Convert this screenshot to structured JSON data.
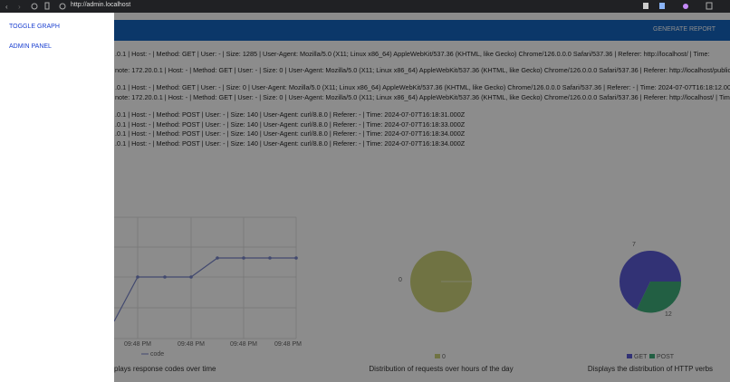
{
  "browser": {
    "url": "http://admin.localhost"
  },
  "header": {
    "button": "GENERATE REPORT"
  },
  "sidebar": {
    "links": [
      "TOGGLE GRAPH",
      "ADMIN PANEL"
    ]
  },
  "logs": [
    ".0.1 | Host: - | Method: GET | User: - | Size: 1285 | User-Agent: Mozilla/5.0 (X11; Linux x86_64) AppleWebKit/537.36 (KHTML, like Gecko) Chrome/126.0.0.0 Safari/537.36 | Referer: http://localhost/ | Time:",
    "note: 172.20.0.1 | Host: - | Method: GET | User: - | Size: 0 | User-Agent: Mozilla/5.0 (X11; Linux x86_64) AppleWebKit/537.36 (KHTML, like Gecko) Chrome/126.0.0.0 Safari/537.36 | Referer: http://localhost/public/ |",
    ".0.1 | Host: - | Method: GET | User: - | Size: 0 | User-Agent: Mozilla/5.0 (X11; Linux x86_64) AppleWebKit/537.36 (KHTML, like Gecko) Chrome/126.0.0.0 Safari/537.36 | Referer: - | Time: 2024-07-07T16:18:12.000Z",
    "note: 172.20.0.1 | Host: - | Method: GET | User: - | Size: 0 | User-Agent: Mozilla/5.0 (X11; Linux x86_64) AppleWebKit/537.36 (KHTML, like Gecko) Chrome/126.0.0.0 Safari/537.36 | Referer: http://localhost/ | Time:",
    ".0.1 | Host: - | Method: POST | User: - | Size: 140 | User-Agent: curl/8.8.0 | Referer: - | Time: 2024-07-07T16:18:31.000Z",
    ".0.1 | Host: - | Method: POST | User: - | Size: 140 | User-Agent: curl/8.8.0 | Referer: - | Time: 2024-07-07T16:18:33.000Z",
    ".0.1 | Host: - | Method: POST | User: - | Size: 140 | User-Agent: curl/8.8.0 | Referer: - | Time: 2024-07-07T16:18:34.000Z",
    ".0.1 | Host: - | Method: POST | User: - | Size: 140 | User-Agent: curl/8.8.0 | Referer: - | Time: 2024-07-07T16:18:34.000Z"
  ],
  "line_chart": {
    "xlabels": [
      "09:48 PM",
      "09:48 PM",
      "09:48 PM",
      "09:48 PM"
    ],
    "legend": "code",
    "caption": "plays response codes over time"
  },
  "hours_chart": {
    "label": "0",
    "legend": "0",
    "caption": "Distribution of requests over hours of the day"
  },
  "verbs_chart": {
    "labels": [
      "7",
      "12"
    ],
    "legend": [
      "GET",
      "POST"
    ],
    "caption": "Displays the distribution of HTTP verbs"
  }
}
